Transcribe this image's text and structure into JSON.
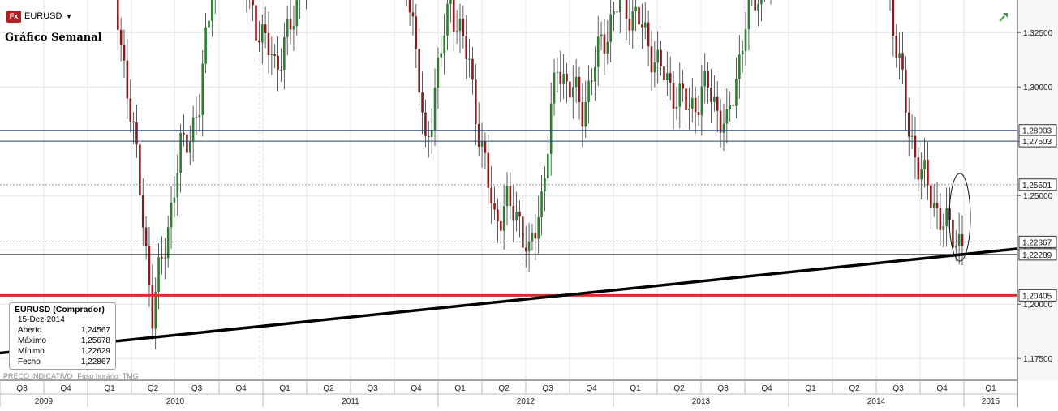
{
  "header": {
    "symbol": "EURUSD",
    "badge": "Fx",
    "title": "Gráfico Semanal"
  },
  "info_box": {
    "title": "EURUSD (Comprador)",
    "date": "15-Dez-2014",
    "rows": [
      {
        "label": "Aberto",
        "value": "1,24567"
      },
      {
        "label": "Máximo",
        "value": "1,25678"
      },
      {
        "label": "Mínimo",
        "value": "1,22629"
      },
      {
        "label": "Fecho",
        "value": "1,22867"
      }
    ]
  },
  "footer": {
    "note": "PREÇO INDICATIVO",
    "timezone": "Fuso horário: TMG"
  },
  "colors": {
    "up_candle": "#2e7d32",
    "down_candle": "#8b1a1a",
    "support_line": "#d32f2f",
    "trend_line": "#000000",
    "resistance_lines": "#2c4a7a",
    "grid": "#e4e4e4"
  },
  "chart_data": {
    "type": "candlestick",
    "y_axis": {
      "min": 1.165,
      "max": 1.34,
      "ticks": [
        1.325,
        1.3,
        1.275,
        1.25,
        1.225,
        1.2,
        1.175
      ],
      "tick_labels": [
        "1,32500",
        "1,30000",
        "1,27500",
        "1,25000",
        "1,22500",
        "1,20000",
        "1,17500"
      ]
    },
    "x_axis": {
      "quarters": [
        "Q3",
        "Q4",
        "Q1",
        "Q2",
        "Q3",
        "Q4",
        "Q1",
        "Q2",
        "Q3",
        "Q4",
        "Q1",
        "Q2",
        "Q3",
        "Q4",
        "Q1",
        "Q2",
        "Q3",
        "Q4",
        "Q1",
        "Q2",
        "Q3",
        "Q4",
        "Q1"
      ],
      "years": [
        "2009",
        "2010",
        "2011",
        "2012",
        "2013",
        "2014",
        "2015"
      ]
    },
    "levels": [
      {
        "value": 1.28003,
        "label": "1,28003",
        "style": "blue"
      },
      {
        "value": 1.27503,
        "label": "1,27503",
        "style": "blue"
      },
      {
        "value": 1.25501,
        "label": "1,25501",
        "style": "dotted"
      },
      {
        "value": 1.22867,
        "label": "1,22867",
        "style": "dotted"
      },
      {
        "value": 1.22289,
        "label": "1,22289",
        "style": "black"
      },
      {
        "value": 1.20405,
        "label": "1,20405",
        "style": "red"
      }
    ],
    "trendline": {
      "start": [
        0,
        1.1775
      ],
      "end": [
        1.0,
        1.2255
      ]
    },
    "candles": []
  }
}
